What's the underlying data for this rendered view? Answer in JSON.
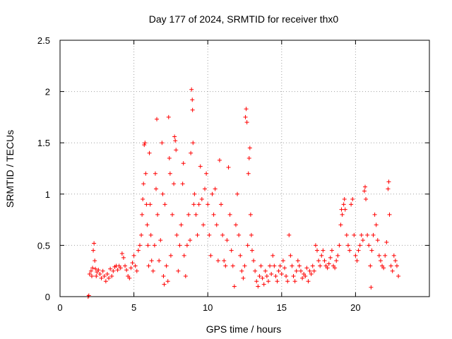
{
  "chart_data": {
    "type": "scatter",
    "title": "Day 177 of 2024, SRMTID for receiver thx0",
    "xlabel": "GPS time / hours",
    "ylabel": "SRMTID / TECUs",
    "xlim": [
      0,
      25
    ],
    "ylim": [
      0,
      2.5
    ],
    "xticks": [
      0,
      5,
      10,
      15,
      20
    ],
    "yticks": [
      0,
      0.5,
      1,
      1.5,
      2,
      2.5
    ],
    "xtick_labels": [
      "0",
      "5",
      "10",
      "15",
      "20"
    ],
    "ytick_labels": [
      "0",
      "0.5",
      "1",
      "1.5",
      "2",
      "2.5"
    ],
    "grid": true,
    "marker": "+",
    "color": "#ff0000",
    "series": [
      {
        "name": "thx0",
        "points": [
          [
            1.9,
            0.0
          ],
          [
            1.95,
            0.01
          ],
          [
            2.0,
            0.22
          ],
          [
            2.1,
            0.25
          ],
          [
            2.15,
            0.2
          ],
          [
            2.2,
            0.28
          ],
          [
            2.25,
            0.45
          ],
          [
            2.3,
            0.52
          ],
          [
            2.35,
            0.35
          ],
          [
            2.4,
            0.27
          ],
          [
            2.45,
            0.2
          ],
          [
            2.5,
            0.24
          ],
          [
            2.6,
            0.26
          ],
          [
            2.7,
            0.22
          ],
          [
            2.8,
            0.18
          ],
          [
            2.9,
            0.25
          ],
          [
            3.0,
            0.2
          ],
          [
            3.1,
            0.15
          ],
          [
            3.2,
            0.22
          ],
          [
            3.3,
            0.18
          ],
          [
            3.4,
            0.27
          ],
          [
            3.5,
            0.2
          ],
          [
            3.6,
            0.25
          ],
          [
            3.7,
            0.29
          ],
          [
            3.8,
            0.3
          ],
          [
            3.9,
            0.26
          ],
          [
            4.0,
            0.3
          ],
          [
            4.1,
            0.28
          ],
          [
            4.2,
            0.42
          ],
          [
            4.3,
            0.38
          ],
          [
            4.4,
            0.3
          ],
          [
            4.5,
            0.26
          ],
          [
            4.6,
            0.2
          ],
          [
            4.7,
            0.18
          ],
          [
            4.8,
            0.28
          ],
          [
            4.9,
            0.33
          ],
          [
            5.0,
            0.4
          ],
          [
            5.1,
            0.3
          ],
          [
            5.2,
            0.25
          ],
          [
            5.3,
            0.45
          ],
          [
            5.4,
            0.5
          ],
          [
            5.5,
            0.6
          ],
          [
            5.55,
            0.8
          ],
          [
            5.6,
            0.95
          ],
          [
            5.65,
            1.1
          ],
          [
            5.7,
            1.48
          ],
          [
            5.75,
            1.5
          ],
          [
            5.8,
            1.2
          ],
          [
            5.85,
            0.9
          ],
          [
            5.9,
            0.7
          ],
          [
            5.95,
            0.5
          ],
          [
            6.0,
            0.3
          ],
          [
            6.05,
            1.4
          ],
          [
            6.1,
            0.9
          ],
          [
            6.15,
            0.6
          ],
          [
            6.2,
            0.35
          ],
          [
            6.3,
            0.25
          ],
          [
            6.4,
            0.5
          ],
          [
            6.45,
            1.2
          ],
          [
            6.5,
            1.05
          ],
          [
            6.55,
            1.73
          ],
          [
            6.6,
            0.8
          ],
          [
            6.7,
            0.35
          ],
          [
            6.8,
            0.55
          ],
          [
            6.9,
            1.5
          ],
          [
            6.95,
            1.0
          ],
          [
            7.0,
            0.2
          ],
          [
            7.05,
            0.12
          ],
          [
            7.1,
            0.9
          ],
          [
            7.2,
            0.3
          ],
          [
            7.3,
            0.15
          ],
          [
            7.35,
            1.75
          ],
          [
            7.4,
            1.35
          ],
          [
            7.45,
            1.2
          ],
          [
            7.5,
            0.4
          ],
          [
            7.6,
            0.8
          ],
          [
            7.7,
            1.1
          ],
          [
            7.75,
            1.56
          ],
          [
            7.8,
            1.52
          ],
          [
            7.85,
            1.43
          ],
          [
            7.9,
            0.6
          ],
          [
            8.0,
            0.25
          ],
          [
            8.1,
            0.5
          ],
          [
            8.2,
            0.7
          ],
          [
            8.3,
            1.1
          ],
          [
            8.35,
            1.3
          ],
          [
            8.4,
            0.4
          ],
          [
            8.5,
            0.2
          ],
          [
            8.6,
            0.5
          ],
          [
            8.7,
            0.8
          ],
          [
            8.8,
            0.55
          ],
          [
            8.85,
            1.4
          ],
          [
            8.9,
            2.02
          ],
          [
            8.95,
            1.92
          ],
          [
            8.97,
            1.82
          ],
          [
            9.0,
            1.5
          ],
          [
            9.05,
            0.9
          ],
          [
            9.1,
            1.0
          ],
          [
            9.2,
            0.8
          ],
          [
            9.3,
            0.6
          ],
          [
            9.4,
            0.9
          ],
          [
            9.5,
            1.27
          ],
          [
            9.6,
            0.95
          ],
          [
            9.7,
            0.7
          ],
          [
            9.8,
            1.05
          ],
          [
            9.9,
            1.2
          ],
          [
            10.0,
            0.9
          ],
          [
            10.1,
            0.6
          ],
          [
            10.2,
            0.4
          ],
          [
            10.3,
            1.0
          ],
          [
            10.4,
            0.8
          ],
          [
            10.5,
            1.05
          ],
          [
            10.6,
            0.7
          ],
          [
            10.7,
            0.35
          ],
          [
            10.8,
            1.33
          ],
          [
            10.9,
            0.9
          ],
          [
            11.0,
            0.6
          ],
          [
            11.1,
            0.35
          ],
          [
            11.2,
            0.3
          ],
          [
            11.3,
            0.55
          ],
          [
            11.4,
            1.26
          ],
          [
            11.5,
            0.8
          ],
          [
            11.6,
            0.45
          ],
          [
            11.7,
            0.3
          ],
          [
            11.8,
            0.1
          ],
          [
            11.9,
            0.7
          ],
          [
            12.0,
            1.0
          ],
          [
            12.1,
            0.6
          ],
          [
            12.2,
            0.4
          ],
          [
            12.3,
            0.25
          ],
          [
            12.4,
            0.18
          ],
          [
            12.5,
            0.3
          ],
          [
            12.55,
            1.75
          ],
          [
            12.6,
            1.83
          ],
          [
            12.65,
            1.7
          ],
          [
            12.7,
            0.5
          ],
          [
            12.75,
            1.2
          ],
          [
            12.8,
            1.35
          ],
          [
            12.85,
            1.45
          ],
          [
            12.9,
            0.8
          ],
          [
            12.95,
            0.6
          ],
          [
            13.0,
            0.45
          ],
          [
            13.1,
            0.35
          ],
          [
            13.2,
            0.25
          ],
          [
            13.3,
            0.15
          ],
          [
            13.4,
            0.1
          ],
          [
            13.5,
            0.2
          ],
          [
            13.6,
            0.3
          ],
          [
            13.7,
            0.18
          ],
          [
            13.8,
            0.12
          ],
          [
            13.9,
            0.25
          ],
          [
            14.0,
            0.2
          ],
          [
            14.1,
            0.15
          ],
          [
            14.2,
            0.3
          ],
          [
            14.3,
            0.22
          ],
          [
            14.4,
            0.4
          ],
          [
            14.5,
            0.3
          ],
          [
            14.6,
            0.2
          ],
          [
            14.7,
            0.15
          ],
          [
            14.8,
            0.25
          ],
          [
            14.9,
            0.3
          ],
          [
            15.0,
            0.22
          ],
          [
            15.1,
            0.35
          ],
          [
            15.2,
            0.28
          ],
          [
            15.3,
            0.2
          ],
          [
            15.4,
            0.15
          ],
          [
            15.5,
            0.6
          ],
          [
            15.6,
            0.4
          ],
          [
            15.7,
            0.3
          ],
          [
            15.8,
            0.2
          ],
          [
            15.9,
            0.15
          ],
          [
            16.0,
            0.25
          ],
          [
            16.1,
            0.35
          ],
          [
            16.2,
            0.3
          ],
          [
            16.3,
            0.25
          ],
          [
            16.4,
            0.18
          ],
          [
            16.5,
            0.22
          ],
          [
            16.6,
            0.2
          ],
          [
            16.7,
            0.28
          ],
          [
            16.8,
            0.15
          ],
          [
            16.9,
            0.25
          ],
          [
            17.0,
            0.22
          ],
          [
            17.1,
            0.3
          ],
          [
            17.2,
            0.25
          ],
          [
            17.3,
            0.5
          ],
          [
            17.4,
            0.45
          ],
          [
            17.5,
            0.35
          ],
          [
            17.6,
            0.3
          ],
          [
            17.7,
            0.4
          ],
          [
            17.8,
            0.45
          ],
          [
            17.9,
            0.35
          ],
          [
            18.0,
            0.3
          ],
          [
            18.1,
            0.28
          ],
          [
            18.2,
            0.32
          ],
          [
            18.3,
            0.38
          ],
          [
            18.4,
            0.45
          ],
          [
            18.5,
            0.3
          ],
          [
            18.6,
            0.28
          ],
          [
            18.7,
            0.35
          ],
          [
            18.8,
            0.4
          ],
          [
            18.9,
            0.5
          ],
          [
            19.0,
            0.7
          ],
          [
            19.05,
            0.85
          ],
          [
            19.1,
            0.8
          ],
          [
            19.2,
            0.9
          ],
          [
            19.25,
            0.95
          ],
          [
            19.3,
            0.85
          ],
          [
            19.4,
            0.6
          ],
          [
            19.5,
            0.5
          ],
          [
            19.6,
            0.45
          ],
          [
            19.7,
            0.9
          ],
          [
            19.8,
            0.95
          ],
          [
            19.9,
            0.6
          ],
          [
            20.0,
            0.4
          ],
          [
            20.1,
            0.35
          ],
          [
            20.2,
            0.45
          ],
          [
            20.3,
            0.5
          ],
          [
            20.4,
            0.6
          ],
          [
            20.5,
            0.55
          ],
          [
            20.6,
            1.03
          ],
          [
            20.65,
            1.07
          ],
          [
            20.7,
            0.95
          ],
          [
            20.8,
            0.6
          ],
          [
            20.9,
            0.5
          ],
          [
            21.0,
            0.3
          ],
          [
            21.05,
            0.09
          ],
          [
            21.1,
            0.45
          ],
          [
            21.2,
            0.6
          ],
          [
            21.3,
            0.8
          ],
          [
            21.4,
            0.7
          ],
          [
            21.5,
            0.55
          ],
          [
            21.6,
            0.4
          ],
          [
            21.7,
            0.35
          ],
          [
            21.8,
            0.3
          ],
          [
            21.9,
            0.28
          ],
          [
            22.0,
            0.4
          ],
          [
            22.1,
            0.53
          ],
          [
            22.2,
            1.05
          ],
          [
            22.25,
            1.12
          ],
          [
            22.3,
            0.8
          ],
          [
            22.4,
            0.3
          ],
          [
            22.5,
            0.25
          ],
          [
            22.6,
            0.4
          ],
          [
            22.7,
            0.35
          ],
          [
            22.8,
            0.3
          ],
          [
            22.9,
            0.2
          ]
        ]
      }
    ]
  }
}
